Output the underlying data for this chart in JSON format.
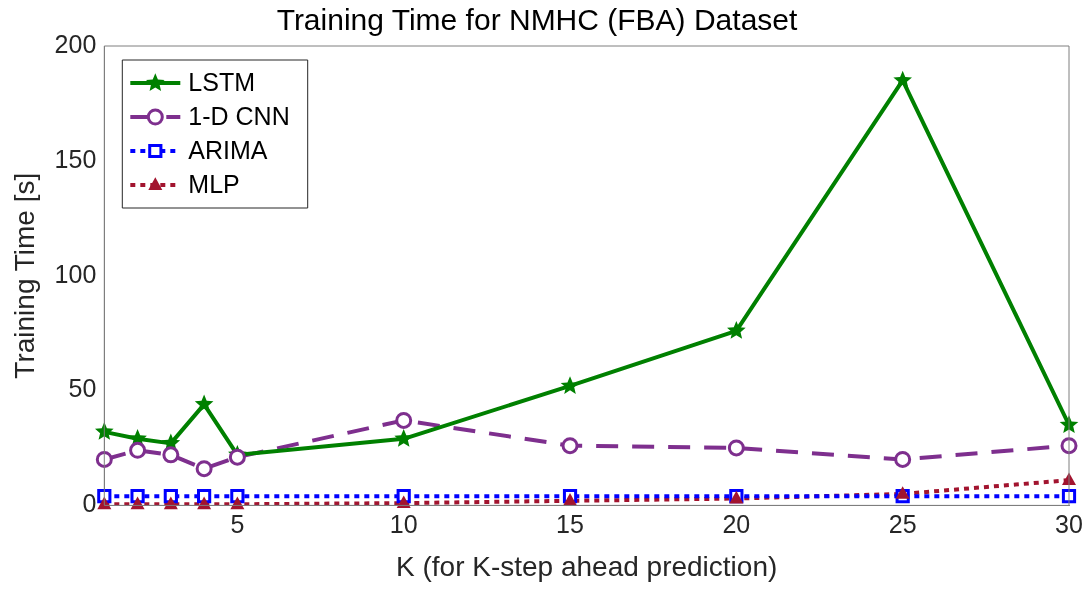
{
  "chart_data": {
    "type": "line",
    "title": "Training Time for NMHC (FBA) Dataset",
    "xlabel": "K (for K-step ahead prediction)",
    "ylabel": "Training Time [s]",
    "x": [
      1,
      2,
      3,
      4,
      5,
      10,
      15,
      20,
      25,
      30
    ],
    "series": [
      {
        "name": "LSTM",
        "color": "#008000",
        "marker": "star",
        "line_style": "solid",
        "values": [
          32,
          29,
          27,
          44,
          22,
          29,
          52,
          76,
          185,
          35
        ]
      },
      {
        "name": "1-D CNN",
        "color": "#7e2f8e",
        "marker": "circle",
        "line_style": "dashed",
        "values": [
          20,
          24,
          22,
          16,
          21,
          37,
          26,
          25,
          20,
          26
        ]
      },
      {
        "name": "ARIMA",
        "color": "#0000ff",
        "marker": "square",
        "line_style": "dotted",
        "values": [
          4,
          4,
          4,
          4,
          4,
          4,
          4,
          4,
          4,
          4
        ]
      },
      {
        "name": "MLP",
        "color": "#a2142f",
        "marker": "triangle",
        "line_style": "dotted",
        "values": [
          0.5,
          0.5,
          0.5,
          0.5,
          0.5,
          1,
          2,
          3,
          5,
          11
        ]
      }
    ],
    "xlim": [
      1,
      30
    ],
    "xticks": [
      5,
      10,
      15,
      20,
      25,
      30
    ],
    "ylim": [
      0,
      200
    ],
    "yticks": [
      0,
      50,
      100,
      150,
      200
    ],
    "grid": false,
    "legend": "top left"
  }
}
